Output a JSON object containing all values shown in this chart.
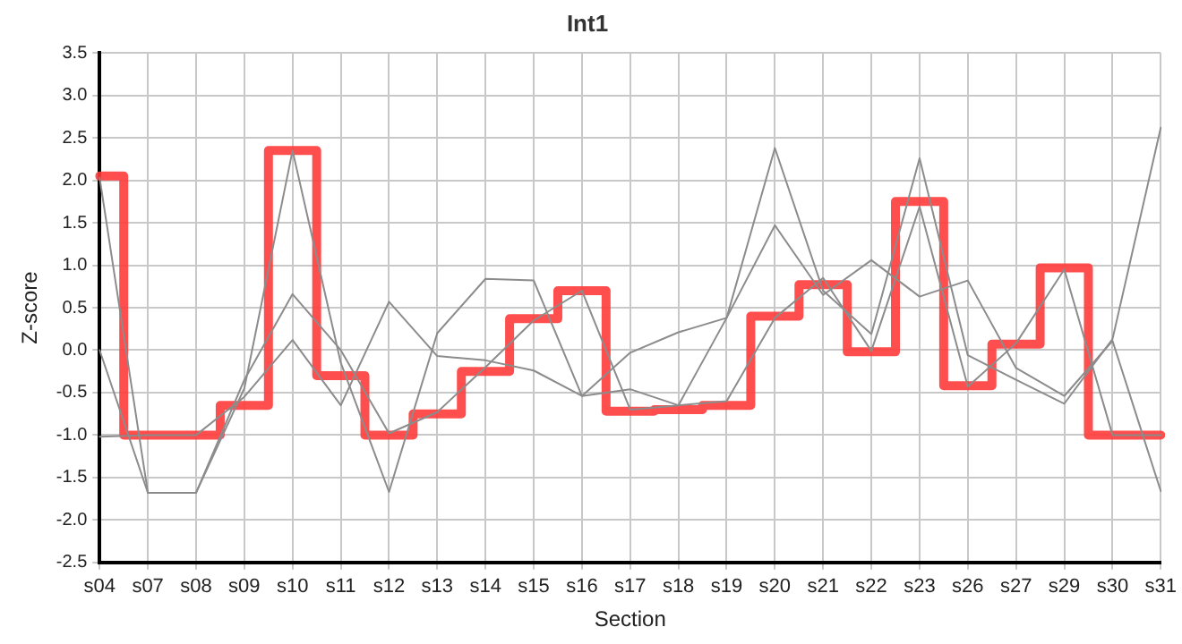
{
  "chart_data": {
    "type": "line",
    "title": "Int1",
    "xlabel": "Section",
    "ylabel": "Z-score",
    "categories": [
      "s04",
      "s07",
      "s08",
      "s09",
      "s10",
      "s11",
      "s12",
      "s13",
      "s14",
      "s15",
      "s16",
      "s17",
      "s18",
      "s19",
      "s20",
      "s21",
      "s22",
      "s23",
      "s26",
      "s27",
      "s29",
      "s30",
      "s31"
    ],
    "series": [
      {
        "type": "line",
        "color": "#8c8c8c",
        "values": [
          2.03,
          -1.68,
          -1.68,
          -0.45,
          2.35,
          -0.15,
          -1.67,
          0.2,
          0.84,
          0.82,
          -0.54,
          -0.46,
          -0.65,
          0.38,
          2.38,
          0.7,
          0.19,
          2.26,
          -0.06,
          -0.35,
          -0.63,
          0.13,
          2.62
        ]
      },
      {
        "type": "line",
        "color": "#8c8c8c",
        "values": [
          0.0,
          -1.68,
          -1.68,
          -0.35,
          0.66,
          0.0,
          -0.98,
          -0.73,
          -0.2,
          0.35,
          0.7,
          -0.7,
          -0.65,
          -0.6,
          0.38,
          0.85,
          -0.01,
          1.69,
          -0.43,
          0.08,
          0.95,
          -1.0,
          -1.0
        ]
      },
      {
        "type": "line",
        "color": "#8c8c8c",
        "values": [
          -1.02,
          -1.0,
          -1.0,
          -0.55,
          0.12,
          -0.65,
          0.57,
          -0.07,
          -0.12,
          -0.24,
          -0.54,
          -0.03,
          0.21,
          0.38,
          1.47,
          0.65,
          1.06,
          0.63,
          0.82,
          -0.21,
          -0.54,
          0.11,
          -1.66
        ]
      },
      {
        "type": "step",
        "color": "#ff3b3b",
        "values": [
          2.05,
          -1.0,
          -1.0,
          -0.65,
          2.35,
          -0.3,
          -1.0,
          -0.75,
          -0.25,
          0.37,
          0.7,
          -0.72,
          -0.7,
          -0.65,
          0.4,
          0.77,
          -0.02,
          1.75,
          -0.42,
          0.07,
          0.97,
          -1.0,
          -1.0
        ]
      }
    ],
    "ylim": [
      -2.5,
      3.5
    ],
    "yticks": [
      -2.5,
      {
        "value": -2,
        "label": "-2.0"
      },
      -1.5,
      {
        "value": -1,
        "label": "-1.0"
      },
      -0.5,
      {
        "value": 0,
        "label": "0.0"
      },
      0.5,
      {
        "value": 1,
        "label": "1.0"
      },
      1.5,
      {
        "value": 2,
        "label": "2.0"
      },
      2.5,
      {
        "value": 3,
        "label": "3.0"
      },
      3.5
    ],
    "grid": true,
    "legend": false,
    "marker": "none"
  }
}
